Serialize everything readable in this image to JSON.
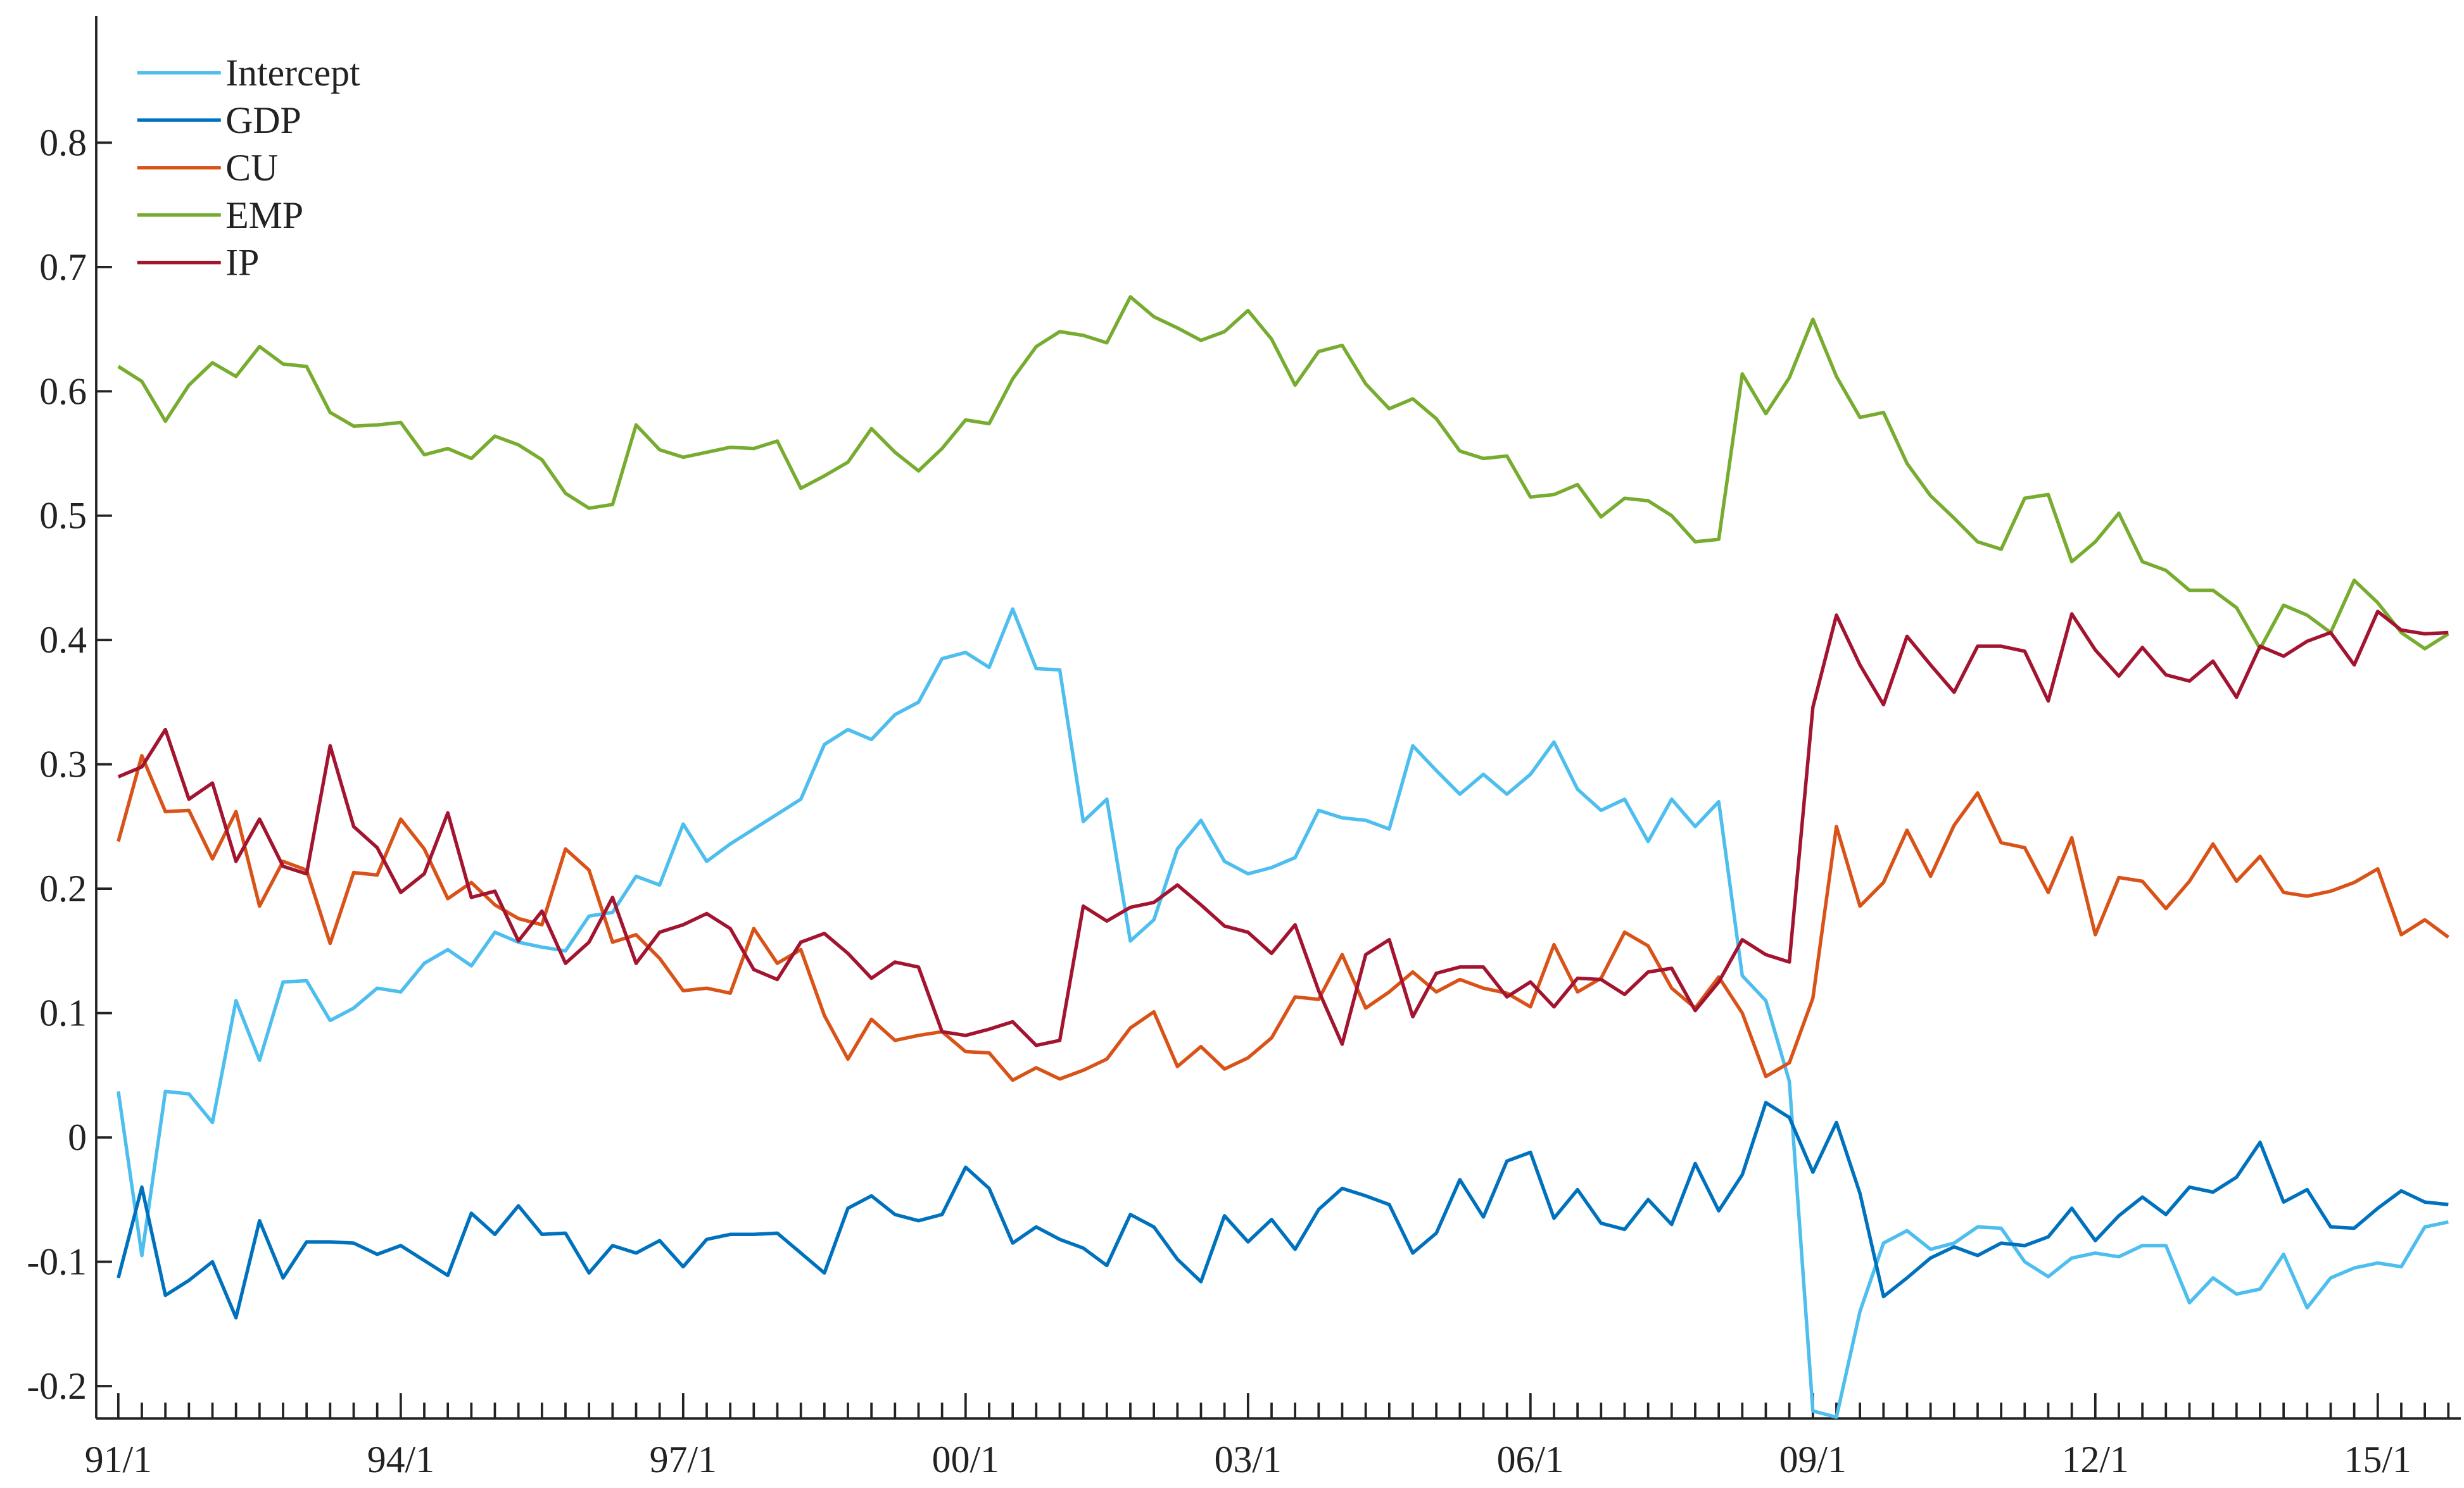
{
  "chart_data": {
    "type": "line",
    "categories": [
      "91/1",
      null,
      null,
      null,
      null,
      null,
      null,
      null,
      null,
      null,
      null,
      null,
      "94/1",
      null,
      null,
      null,
      null,
      null,
      null,
      null,
      null,
      null,
      null,
      null,
      "97/1",
      null,
      null,
      null,
      null,
      null,
      null,
      null,
      null,
      null,
      null,
      null,
      "00/1",
      null,
      null,
      null,
      null,
      null,
      null,
      null,
      null,
      null,
      null,
      null,
      "03/1",
      null,
      null,
      null,
      null,
      null,
      null,
      null,
      null,
      null,
      null,
      null,
      "06/1",
      null,
      null,
      null,
      null,
      null,
      null,
      null,
      null,
      null,
      null,
      null,
      "09/1",
      null,
      null,
      null,
      null,
      null,
      null,
      null,
      null,
      null,
      null,
      null,
      "12/1",
      null,
      null,
      null,
      null,
      null,
      null,
      null,
      null,
      null,
      null,
      null,
      "15/1",
      null,
      null,
      null
    ],
    "ylim": [
      -0.226,
      0.902
    ],
    "yticks": [
      -0.2,
      -0.1,
      0,
      0.1,
      0.2,
      0.3,
      0.4,
      0.5,
      0.6,
      0.7,
      0.8
    ],
    "legend": "upper left",
    "series": [
      {
        "name": "Intercept",
        "color": "#4dbeee",
        "values": [
          0.037,
          -0.095,
          0.037,
          0.035,
          0.012,
          0.11,
          0.062,
          0.125,
          0.126,
          0.094,
          0.104,
          0.12,
          0.117,
          0.14,
          0.151,
          0.138,
          0.165,
          0.157,
          0.153,
          0.15,
          0.178,
          0.181,
          0.21,
          0.203,
          0.252,
          0.222,
          0.236,
          0.248,
          0.26,
          0.272,
          0.316,
          0.328,
          0.32,
          0.34,
          0.35,
          0.385,
          0.39,
          0.378,
          0.425,
          0.377,
          0.376,
          0.254,
          0.272,
          0.158,
          0.175,
          0.232,
          0.255,
          0.222,
          0.212,
          0.217,
          0.225,
          0.263,
          0.257,
          0.255,
          0.248,
          0.315,
          0.295,
          0.276,
          0.292,
          0.276,
          0.292,
          0.318,
          0.28,
          0.263,
          0.272,
          0.238,
          0.272,
          0.25,
          0.27,
          0.13,
          0.11,
          0.045,
          -0.22,
          -0.225,
          -0.14,
          -0.085,
          -0.075,
          -0.09,
          -0.085,
          -0.072,
          -0.073,
          -0.1,
          -0.112,
          -0.097,
          -0.093,
          -0.096,
          -0.087,
          -0.087,
          -0.133,
          -0.113,
          -0.126,
          -0.122,
          -0.094,
          -0.137,
          -0.113,
          -0.105,
          -0.101,
          -0.104,
          -0.072,
          -0.068
        ]
      },
      {
        "name": "GDP",
        "color": "#0072bd",
        "values": [
          -0.113,
          -0.04,
          -0.127,
          -0.115,
          -0.1,
          -0.145,
          -0.067,
          -0.113,
          -0.084,
          -0.084,
          -0.085,
          -0.094,
          -0.087,
          -0.099,
          -0.111,
          -0.061,
          -0.078,
          -0.055,
          -0.078,
          -0.077,
          -0.109,
          -0.087,
          -0.093,
          -0.083,
          -0.104,
          -0.082,
          -0.078,
          -0.078,
          -0.077,
          -0.093,
          -0.109,
          -0.057,
          -0.047,
          -0.062,
          -0.067,
          -0.062,
          -0.024,
          -0.041,
          -0.085,
          -0.072,
          -0.082,
          -0.089,
          -0.103,
          -0.062,
          -0.072,
          -0.098,
          -0.116,
          -0.063,
          -0.084,
          -0.066,
          -0.09,
          -0.058,
          -0.041,
          -0.047,
          -0.054,
          -0.093,
          -0.077,
          -0.034,
          -0.064,
          -0.019,
          -0.012,
          -0.065,
          -0.042,
          -0.069,
          -0.074,
          -0.05,
          -0.07,
          -0.021,
          -0.059,
          -0.03,
          0.028,
          0.016,
          -0.028,
          0.012,
          -0.045,
          -0.128,
          -0.113,
          -0.097,
          -0.088,
          -0.095,
          -0.085,
          -0.087,
          -0.08,
          -0.057,
          -0.083,
          -0.063,
          -0.048,
          -0.062,
          -0.04,
          -0.044,
          -0.032,
          -0.004,
          -0.052,
          -0.042,
          -0.072,
          -0.073,
          -0.057,
          -0.043,
          -0.052,
          -0.054
        ]
      },
      {
        "name": "CU",
        "color": "#d95319",
        "values": [
          0.238,
          0.307,
          0.262,
          0.263,
          0.224,
          0.262,
          0.186,
          0.222,
          0.215,
          0.156,
          0.213,
          0.211,
          0.256,
          0.232,
          0.192,
          0.205,
          0.187,
          0.176,
          0.171,
          0.232,
          0.215,
          0.157,
          0.163,
          0.144,
          0.118,
          0.12,
          0.116,
          0.168,
          0.14,
          0.151,
          0.098,
          0.063,
          0.095,
          0.078,
          0.082,
          0.085,
          0.069,
          0.068,
          0.046,
          0.056,
          0.047,
          0.054,
          0.063,
          0.088,
          0.101,
          0.057,
          0.073,
          0.055,
          0.064,
          0.08,
          0.113,
          0.111,
          0.147,
          0.104,
          0.117,
          0.133,
          0.117,
          0.127,
          0.12,
          0.116,
          0.105,
          0.155,
          0.117,
          0.128,
          0.165,
          0.154,
          0.12,
          0.104,
          0.129,
          0.1,
          0.049,
          0.06,
          0.112,
          0.25,
          0.186,
          0.205,
          0.247,
          0.21,
          0.251,
          0.277,
          0.237,
          0.233,
          0.197,
          0.241,
          0.163,
          0.209,
          0.206,
          0.184,
          0.206,
          0.236,
          0.206,
          0.226,
          0.197,
          0.194,
          0.198,
          0.205,
          0.216,
          0.163,
          0.175,
          0.161
        ]
      },
      {
        "name": "EMP",
        "color": "#77ac30",
        "values": [
          0.62,
          0.608,
          0.576,
          0.605,
          0.623,
          0.612,
          0.636,
          0.622,
          0.62,
          0.583,
          0.572,
          0.573,
          0.575,
          0.549,
          0.554,
          0.546,
          0.564,
          0.557,
          0.545,
          0.518,
          0.506,
          0.509,
          0.573,
          0.553,
          0.547,
          0.551,
          0.555,
          0.554,
          0.56,
          0.522,
          0.532,
          0.543,
          0.57,
          0.551,
          0.536,
          0.554,
          0.577,
          0.574,
          0.61,
          0.636,
          0.648,
          0.645,
          0.639,
          0.676,
          0.66,
          0.651,
          0.641,
          0.648,
          0.665,
          0.642,
          0.605,
          0.632,
          0.637,
          0.606,
          0.586,
          0.594,
          0.578,
          0.552,
          0.546,
          0.548,
          0.515,
          0.517,
          0.525,
          0.499,
          0.514,
          0.512,
          0.5,
          0.479,
          0.481,
          0.614,
          0.582,
          0.611,
          0.658,
          0.612,
          0.579,
          0.583,
          0.542,
          0.516,
          0.498,
          0.479,
          0.473,
          0.514,
          0.517,
          0.463,
          0.479,
          0.502,
          0.463,
          0.456,
          0.44,
          0.44,
          0.426,
          0.393,
          0.428,
          0.42,
          0.406,
          0.448,
          0.43,
          0.406,
          0.393,
          0.405
        ]
      },
      {
        "name": "IP",
        "color": "#a2142f",
        "values": [
          0.29,
          0.298,
          0.328,
          0.272,
          0.285,
          0.222,
          0.256,
          0.218,
          0.212,
          0.315,
          0.25,
          0.233,
          0.197,
          0.212,
          0.261,
          0.193,
          0.198,
          0.158,
          0.182,
          0.14,
          0.157,
          0.193,
          0.14,
          0.165,
          0.171,
          0.18,
          0.168,
          0.135,
          0.127,
          0.157,
          0.164,
          0.148,
          0.128,
          0.141,
          0.137,
          0.085,
          0.082,
          0.087,
          0.093,
          0.074,
          0.078,
          0.186,
          0.174,
          0.185,
          0.189,
          0.203,
          0.187,
          0.17,
          0.165,
          0.148,
          0.171,
          0.118,
          0.075,
          0.147,
          0.159,
          0.097,
          0.132,
          0.137,
          0.137,
          0.113,
          0.125,
          0.105,
          0.128,
          0.127,
          0.115,
          0.133,
          0.136,
          0.102,
          0.125,
          0.159,
          0.147,
          0.141,
          0.346,
          0.42,
          0.38,
          0.348,
          0.403,
          0.38,
          0.358,
          0.395,
          0.395,
          0.391,
          0.351,
          0.421,
          0.392,
          0.371,
          0.394,
          0.372,
          0.367,
          0.383,
          0.354,
          0.395,
          0.387,
          0.399,
          0.406,
          0.38,
          0.423,
          0.408,
          0.405,
          0.406
        ]
      }
    ]
  }
}
